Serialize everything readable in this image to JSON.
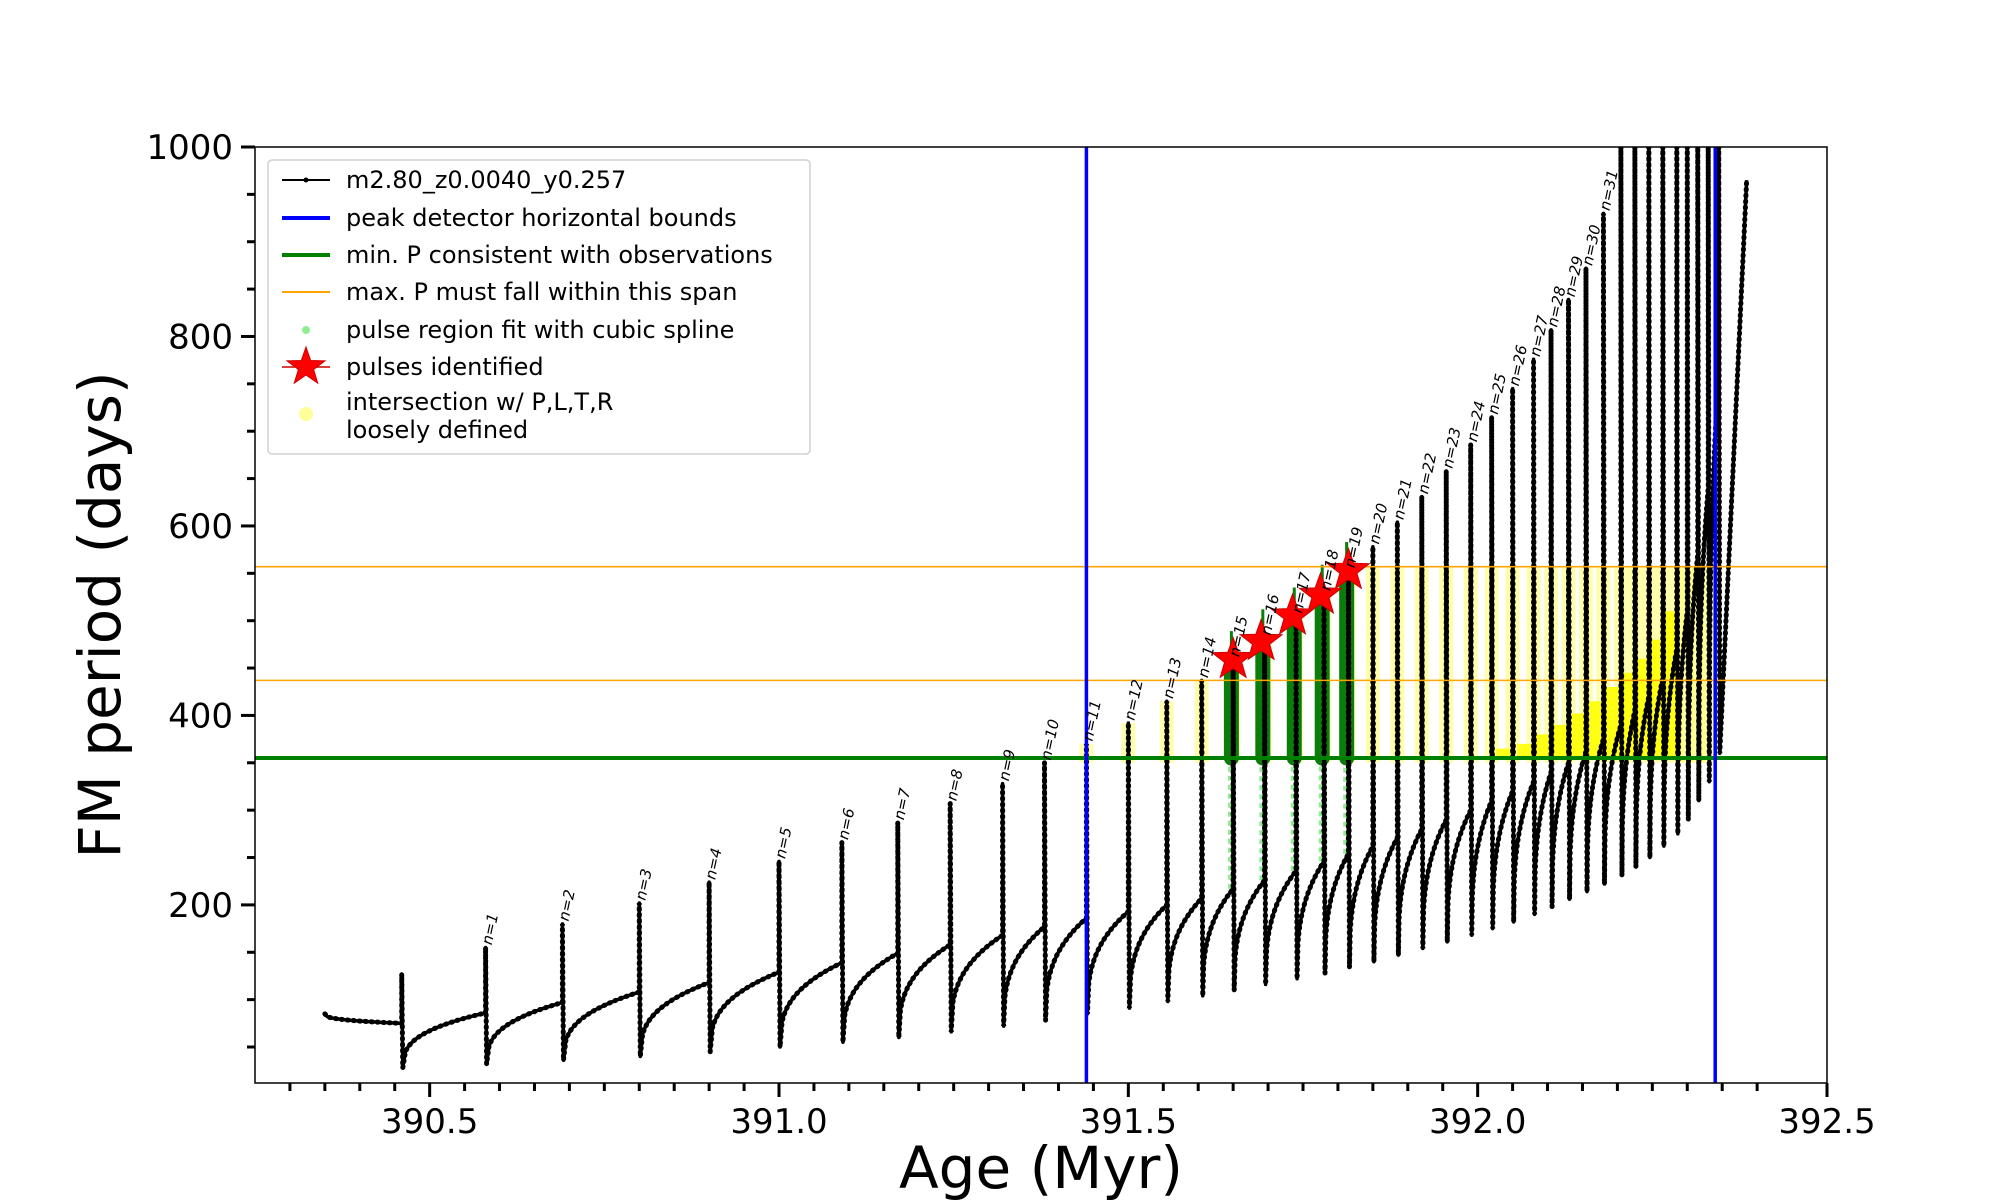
{
  "chart_data": {
    "type": "line",
    "xlabel": "Age (Myr)",
    "ylabel": "FM period (days)",
    "xlim": [
      390.25,
      392.5
    ],
    "ylim": [
      12,
      1000
    ],
    "xticks": [
      390.5,
      391.0,
      391.5,
      392.0,
      392.5
    ],
    "xtick_labels": [
      "390.5",
      "391.0",
      "391.5",
      "392.0",
      "392.5"
    ],
    "yticks": [
      200,
      400,
      600,
      800,
      1000
    ],
    "ytick_labels": [
      "200",
      "400",
      "600",
      "800",
      "1000"
    ],
    "grid": false,
    "legend_position": "top-left",
    "legend": [
      {
        "label": "m2.80_z0.0040_y0.257",
        "kind": "line-dot",
        "color": "#000000"
      },
      {
        "label": "peak detector horizontal bounds",
        "kind": "line",
        "color": "#0000ff"
      },
      {
        "label": "min. P consistent with observations",
        "kind": "line",
        "color": "#008000"
      },
      {
        "label": "max. P must fall within this span",
        "kind": "thinline",
        "color": "#ffa500"
      },
      {
        "label": "pulse region fit with cubic spline",
        "kind": "dot",
        "color": "#90ee90"
      },
      {
        "label": "pulses identified",
        "kind": "star",
        "color": "#ff0000"
      },
      {
        "label": "intersection w/ P,L,T,R\nloosely defined",
        "kind": "circle",
        "color": "#ffff99"
      }
    ],
    "vertical_bounds": [
      391.44,
      392.34
    ],
    "min_period": 355,
    "max_period_span": [
      437,
      557
    ],
    "start_age": 390.35,
    "start_period": 85,
    "pulses": [
      {
        "n": 0,
        "age": 390.46,
        "peak": 127,
        "trough": 28,
        "pre": 75
      },
      {
        "n": 1,
        "age": 390.58,
        "peak": 155,
        "trough": 32,
        "pre": 86
      },
      {
        "n": 2,
        "age": 390.69,
        "peak": 180,
        "trough": 36,
        "pre": 97
      },
      {
        "n": 3,
        "age": 390.8,
        "peak": 202,
        "trough": 40,
        "pre": 108
      },
      {
        "n": 4,
        "age": 390.9,
        "peak": 224,
        "trough": 45,
        "pre": 118
      },
      {
        "n": 5,
        "age": 391.0,
        "peak": 246,
        "trough": 50,
        "pre": 129
      },
      {
        "n": 6,
        "age": 391.09,
        "peak": 266,
        "trough": 55,
        "pre": 139
      },
      {
        "n": 7,
        "age": 391.17,
        "peak": 287,
        "trough": 60,
        "pre": 149
      },
      {
        "n": 8,
        "age": 391.245,
        "peak": 307,
        "trough": 66,
        "pre": 158
      },
      {
        "n": 9,
        "age": 391.32,
        "peak": 328,
        "trough": 72,
        "pre": 168
      },
      {
        "n": 10,
        "age": 391.38,
        "peak": 350,
        "trough": 78,
        "pre": 177
      },
      {
        "n": 11,
        "age": 391.44,
        "peak": 370,
        "trough": 85,
        "pre": 186
      },
      {
        "n": 12,
        "age": 391.5,
        "peak": 392,
        "trough": 91,
        "pre": 193
      },
      {
        "n": 13,
        "age": 391.555,
        "peak": 415,
        "trough": 98,
        "pre": 200
      },
      {
        "n": 14,
        "age": 391.605,
        "peak": 437,
        "trough": 104,
        "pre": 207
      },
      {
        "n": 15,
        "age": 391.65,
        "peak": 459,
        "trough": 110,
        "pre": 217
      },
      {
        "n": 16,
        "age": 391.695,
        "peak": 482,
        "trough": 116,
        "pre": 226
      },
      {
        "n": 17,
        "age": 391.74,
        "peak": 505,
        "trough": 122,
        "pre": 236
      },
      {
        "n": 18,
        "age": 391.78,
        "peak": 529,
        "trough": 128,
        "pre": 246
      },
      {
        "n": 19,
        "age": 391.815,
        "peak": 553,
        "trough": 134,
        "pre": 254
      },
      {
        "n": 20,
        "age": 391.85,
        "peak": 578,
        "trough": 140,
        "pre": 262
      },
      {
        "n": 21,
        "age": 391.885,
        "peak": 604,
        "trough": 147,
        "pre": 271
      },
      {
        "n": 22,
        "age": 391.92,
        "peak": 631,
        "trough": 154,
        "pre": 280
      },
      {
        "n": 23,
        "age": 391.955,
        "peak": 658,
        "trough": 161,
        "pre": 290
      },
      {
        "n": 24,
        "age": 391.99,
        "peak": 686,
        "trough": 168,
        "pre": 300
      },
      {
        "n": 25,
        "age": 392.02,
        "peak": 715,
        "trough": 175,
        "pre": 310
      },
      {
        "n": 26,
        "age": 392.05,
        "peak": 745,
        "trough": 182,
        "pre": 320
      },
      {
        "n": 27,
        "age": 392.08,
        "peak": 776,
        "trough": 190,
        "pre": 330
      },
      {
        "n": 28,
        "age": 392.105,
        "peak": 807,
        "trough": 198,
        "pre": 340
      },
      {
        "n": 29,
        "age": 392.13,
        "peak": 839,
        "trough": 206,
        "pre": 350
      },
      {
        "n": 30,
        "age": 392.155,
        "peak": 872,
        "trough": 214,
        "pre": 362
      },
      {
        "n": 31,
        "age": 392.18,
        "peak": 930,
        "trough": 222,
        "pre": 375
      },
      {
        "n": 32,
        "age": 392.205,
        "peak": 1000,
        "trough": 231,
        "pre": 390
      },
      {
        "n": 33,
        "age": 392.225,
        "peak": 1000,
        "trough": 240,
        "pre": 405
      },
      {
        "n": 34,
        "age": 392.245,
        "peak": 1000,
        "trough": 250,
        "pre": 420
      },
      {
        "n": 35,
        "age": 392.265,
        "peak": 1000,
        "trough": 262,
        "pre": 440
      },
      {
        "n": 36,
        "age": 392.285,
        "peak": 1000,
        "trough": 275,
        "pre": 470
      },
      {
        "n": 37,
        "age": 392.3,
        "peak": 1000,
        "trough": 290,
        "pre": 510
      },
      {
        "n": 38,
        "age": 392.315,
        "peak": 1000,
        "trough": 310,
        "pre": 570
      },
      {
        "n": 39,
        "age": 392.33,
        "peak": 1000,
        "trough": 330,
        "pre": 640
      },
      {
        "n": 40,
        "age": 392.345,
        "peak": 1000,
        "trough": 360,
        "pre": 760
      }
    ],
    "end_age": 392.385,
    "end_period": 965,
    "pulse_labels": [
      "n=1",
      "n=2",
      "n=3",
      "n=4",
      "n=5",
      "n=6",
      "n=7",
      "n=8",
      "n=9",
      "n=10",
      "n=11",
      "n=12",
      "n=13",
      "n=14",
      "n=15",
      "n=16",
      "n=17",
      "n=18",
      "n=19",
      "n=20",
      "n=21",
      "n=22",
      "n=23",
      "n=24",
      "n=25",
      "n=26",
      "n=27",
      "n=28",
      "n=29",
      "n=30",
      "n=31"
    ],
    "identified_pulses": [
      {
        "n": 15,
        "age": 391.65,
        "period": 459
      },
      {
        "n": 16,
        "age": 391.69,
        "period": 478
      },
      {
        "n": 17,
        "age": 391.735,
        "period": 505
      },
      {
        "n": 18,
        "age": 391.775,
        "period": 527
      },
      {
        "n": 19,
        "age": 391.815,
        "period": 553
      }
    ],
    "green_fit_pulses": [
      15,
      16,
      17,
      18,
      19
    ]
  }
}
